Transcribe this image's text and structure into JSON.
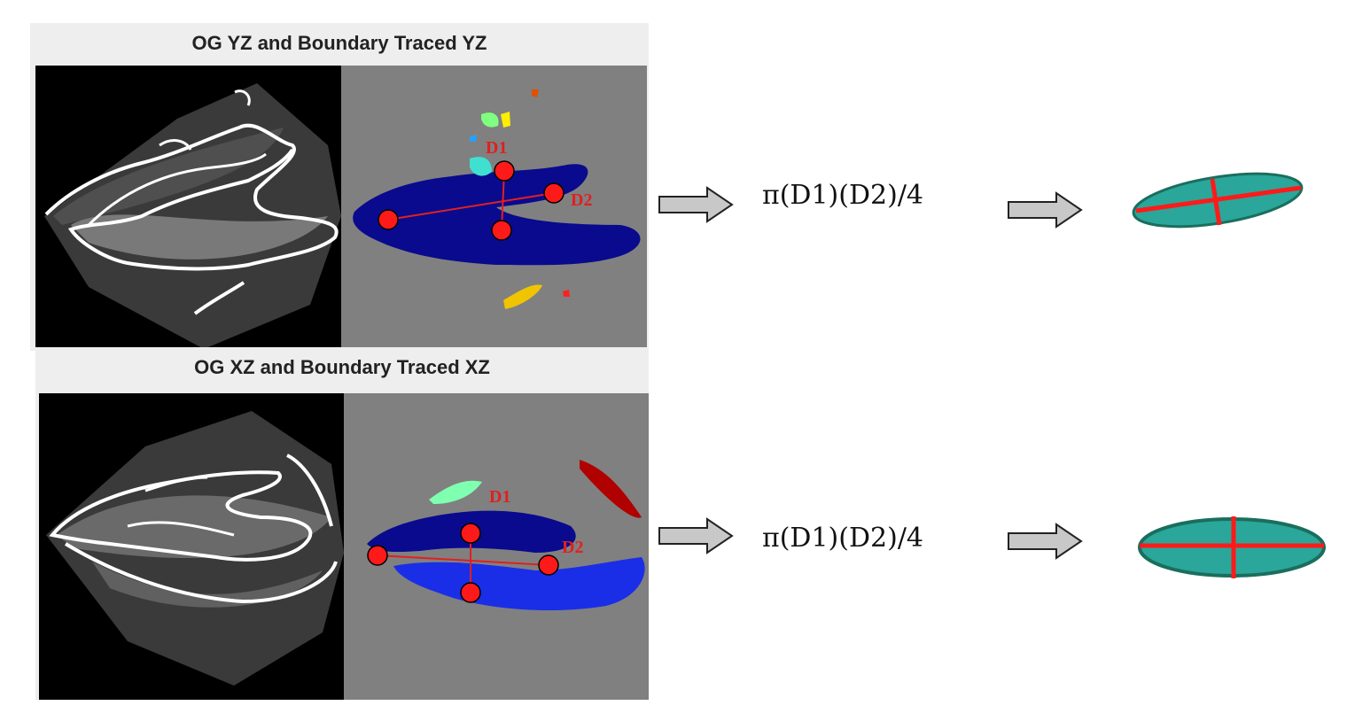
{
  "panels": [
    {
      "title": "OG YZ and Boundary Traced YZ",
      "labels": {
        "d1": "D1",
        "d2": "D2"
      },
      "formula": "π(D1)(D2)/4"
    },
    {
      "title": "OG XZ and Boundary Traced XZ",
      "labels": {
        "d1": "D1",
        "d2": "D2"
      },
      "formula": "π(D1)(D2)/4"
    }
  ],
  "colors": {
    "marker": "#ff1a1a",
    "line": "#e02020",
    "ellipse_fill": "#2aa69a",
    "ellipse_stroke": "#1a6e5e",
    "arrow_fill": "#c8c8c8",
    "segment_gray": "#808080",
    "cluster_navy": "#0a0a8e",
    "cluster_blue": "#1a2ee8"
  }
}
